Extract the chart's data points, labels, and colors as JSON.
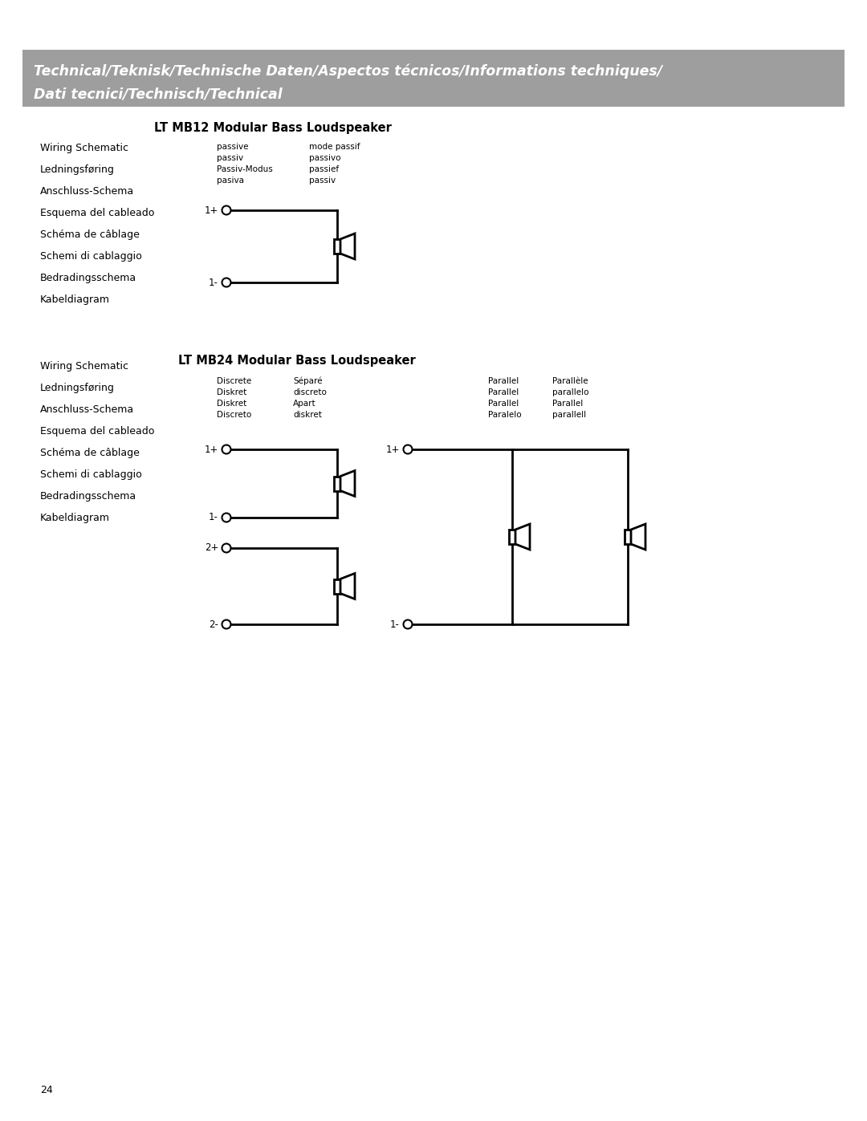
{
  "bg_color": "#ffffff",
  "header_bg": "#9e9e9e",
  "header_text_color": "#ffffff",
  "header_text_line1": "Technical/Teknisk/Technische Daten/Aspectos técnicos/Informations techniques/",
  "header_text_line2": "Dati tecnici/Technisch/Technical",
  "header_fontsize": 12.5,
  "page_number": "24",
  "left_labels": [
    "Wiring Schematic",
    "Ledningsføring",
    "Anschluss-Schema",
    "Esquema del cableado",
    "Schéma de câblage",
    "Schemi di cablaggio",
    "Bedradingsschema",
    "Kabeldiagram"
  ],
  "section1_title": "LT MB12 Modular Bass Loudspeaker",
  "section1_mode_left": "passive\npassiv\nPassiv-Modus\npasiva",
  "section1_mode_right": "mode passif\npassivo\npassief\npassiv",
  "section2_title": "LT MB24 Modular Bass Loudspeaker",
  "section2_discrete_left": "Discrete\nDiskret\nDiskret\nDiscreto",
  "section2_discrete_right": "Séparé\ndiscreto\nApart\ndiskret",
  "section2_parallel_left": "Parallel\nParallel\nParallel\nParalelo",
  "section2_parallel_right": "Parallèle\nparallelo\nParallel\nparallell"
}
